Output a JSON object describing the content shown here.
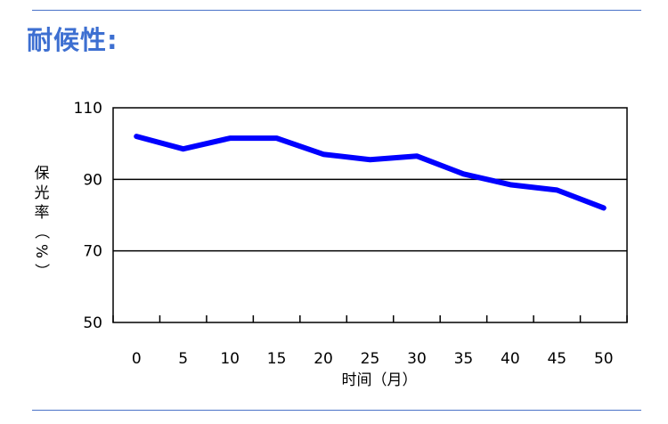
{
  "page": {
    "heading": "耐候性:"
  },
  "chart_data": {
    "type": "line",
    "title": "",
    "xlabel": "时间（月）",
    "ylabel": "保光率（%）",
    "x": [
      0,
      5,
      10,
      15,
      20,
      25,
      30,
      35,
      40,
      45,
      50
    ],
    "x_ticks": [
      "0",
      "5",
      "10",
      "15",
      "20",
      "25",
      "30",
      "35",
      "40",
      "45",
      "50"
    ],
    "y_ticks": [
      "110",
      "90",
      "70",
      "50"
    ],
    "xlim": [
      -2.5,
      52.5
    ],
    "ylim": [
      50,
      110
    ],
    "grid": "horizontal at 70 and 90",
    "series": [
      {
        "x": [
          0,
          5,
          10,
          15,
          20,
          25,
          30,
          35,
          40,
          45,
          50
        ],
        "values": [
          102,
          98.5,
          101.5,
          101.5,
          97,
          95.5,
          96.5,
          91.5,
          88.5,
          87,
          82
        ]
      }
    ],
    "colors": {
      "line": "#0000ff",
      "grid": "#000000",
      "rules": "#4a72c8",
      "heading": "#3d6fd1"
    }
  }
}
